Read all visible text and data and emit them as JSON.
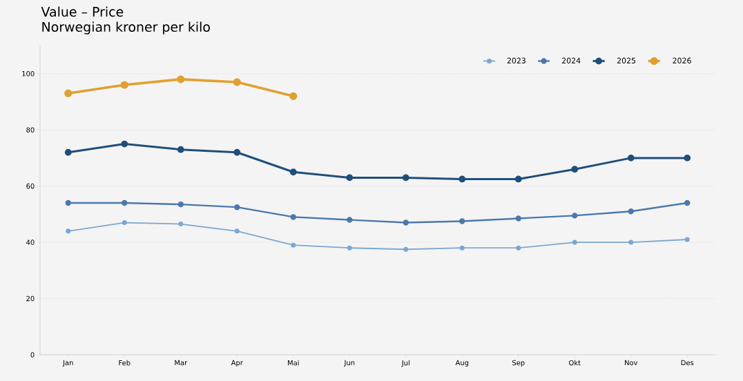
{
  "chart_data": {
    "type": "line",
    "title": "Value – Price",
    "subtitle": "Norwegian kroner per kilo",
    "categories": [
      "Jan",
      "Feb",
      "Mar",
      "Apr",
      "Mai",
      "Jun",
      "Jul",
      "Aug",
      "Sep",
      "Okt",
      "Nov",
      "Des"
    ],
    "series": [
      {
        "name": "2023",
        "color": "#7ba7d0",
        "values": [
          44,
          47,
          46.5,
          44,
          39,
          38,
          37.5,
          38,
          38,
          40,
          40,
          41
        ]
      },
      {
        "name": "2024",
        "color": "#4a78ad",
        "values": [
          54,
          54,
          53.5,
          52.5,
          49,
          48,
          47,
          47.5,
          48.5,
          49.5,
          51,
          54
        ]
      },
      {
        "name": "2025",
        "color": "#1f4e7a",
        "values": [
          72,
          75,
          73,
          72,
          65,
          63,
          63,
          62.5,
          62.5,
          66,
          70,
          70
        ]
      },
      {
        "name": "2026",
        "color": "#e0a030",
        "values": [
          93,
          96,
          98,
          97,
          92,
          null,
          null,
          null,
          null,
          null,
          null,
          null
        ]
      }
    ],
    "ylim": [
      0,
      110
    ],
    "yticks": [
      0,
      20,
      40,
      60,
      80,
      100
    ],
    "grid": "y",
    "legend": "top right",
    "marker": "circle",
    "line_style": "solid"
  }
}
